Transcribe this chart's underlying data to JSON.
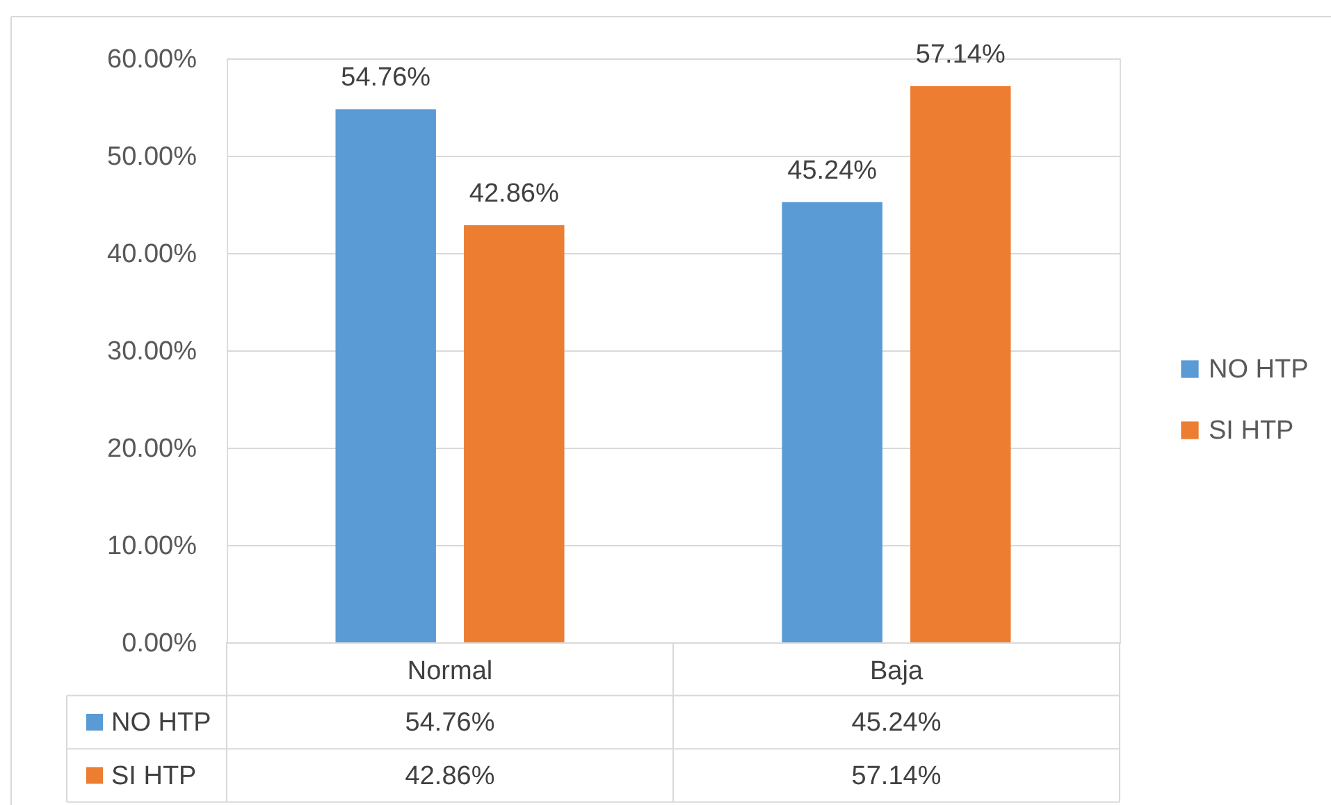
{
  "chart_data": {
    "type": "bar",
    "categories": [
      "Normal",
      "Baja"
    ],
    "series": [
      {
        "name": "NO HTP",
        "color": "#5b9bd5",
        "values": [
          54.76,
          45.24
        ],
        "value_labels": [
          "54.76%",
          "45.24%"
        ]
      },
      {
        "name": "SI HTP",
        "color": "#ed7d31",
        "values": [
          42.86,
          57.14
        ],
        "value_labels": [
          "42.86%",
          "57.14%"
        ]
      }
    ],
    "ylim": [
      0,
      60
    ],
    "yticks": [
      {
        "value": 0,
        "label": "0.00%"
      },
      {
        "value": 10,
        "label": "10.00%"
      },
      {
        "value": 20,
        "label": "20.00%"
      },
      {
        "value": 30,
        "label": "30.00%"
      },
      {
        "value": 40,
        "label": "40.00%"
      },
      {
        "value": 50,
        "label": "50.00%"
      },
      {
        "value": 60,
        "label": "60.00%"
      }
    ],
    "grid": "y",
    "legend": "right"
  }
}
